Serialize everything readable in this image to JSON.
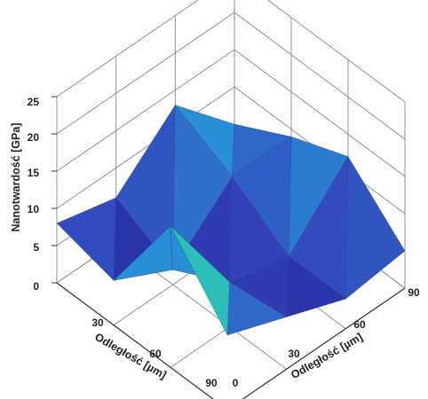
{
  "chart_data": {
    "type": "surface3d",
    "title": "",
    "zlabel": "Nanotwardość [GPa]",
    "xlabel": "Odległość [µm]",
    "ylabel": "Odległość [µm]",
    "zlim": [
      0,
      25
    ],
    "z_ticks": [
      "0",
      "5",
      "10",
      "15",
      "20",
      "25"
    ],
    "x_ticks": [
      "30",
      "60",
      "90"
    ],
    "y_ticks": [
      "0",
      "30",
      "60",
      "90"
    ],
    "grid": true,
    "x": [
      0,
      30,
      60,
      90
    ],
    "y": [
      0,
      30,
      60,
      90
    ],
    "z": [
      [
        5,
        9,
        12,
        5
      ],
      [
        13,
        9,
        4,
        4
      ],
      [
        6,
        2,
        6,
        7
      ],
      [
        8,
        6,
        19,
        10
      ]
    ],
    "colormap": [
      "#1a1f8f",
      "#3440b8",
      "#22b8e8",
      "#44d040",
      "#e2ec30"
    ]
  }
}
